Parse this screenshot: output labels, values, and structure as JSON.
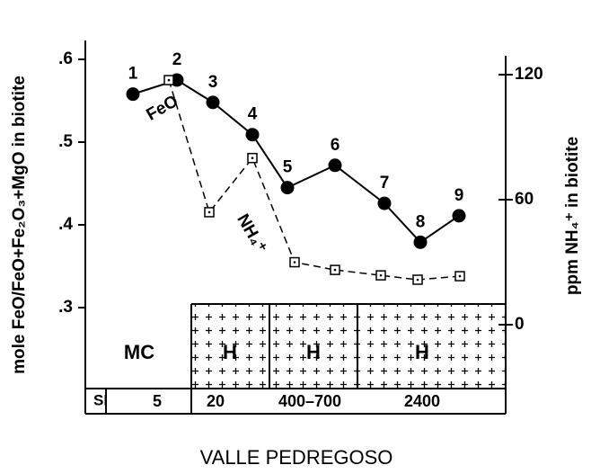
{
  "chart_data": {
    "type": "line",
    "title": "VALLE PEDREGOSO",
    "y_label": "mole FeO/FeO+Fe₂O₃+MgO in biotite",
    "y2_label": "ppm NH₄⁺ in biotite",
    "categories": [
      "1",
      "2",
      "3",
      "4",
      "5",
      "6",
      "7",
      "8",
      "9"
    ],
    "series": [
      {
        "name": "FeO",
        "color": "#000000",
        "values": [
          0.558,
          0.575,
          0.548,
          0.509,
          0.445,
          0.472,
          0.426,
          0.379,
          0.411
        ]
      },
      {
        "name": "NH₄⁺",
        "color": "#000000",
        "axis": "y2",
        "values": [
          null,
          117.4,
          54,
          80,
          30,
          26.3,
          23.7,
          21.6,
          23.3
        ]
      }
    ],
    "ylim": [
      0.2,
      0.62
    ],
    "yticks": [
      {
        "value": 0.6,
        "label": ".6"
      },
      {
        "value": 0.5,
        "label": ".5"
      },
      {
        "value": 0.4,
        "label": ".4"
      },
      {
        "value": 0.3,
        "label": ".3"
      }
    ],
    "y2lim": [
      -31.5,
      135.3
    ],
    "y2ticks": [
      0,
      60,
      120
    ],
    "zones": [
      "MC",
      "H",
      "H",
      "H"
    ],
    "si_label": "SI",
    "si_values": [
      "5",
      "20",
      "400–700",
      "2400"
    ]
  }
}
